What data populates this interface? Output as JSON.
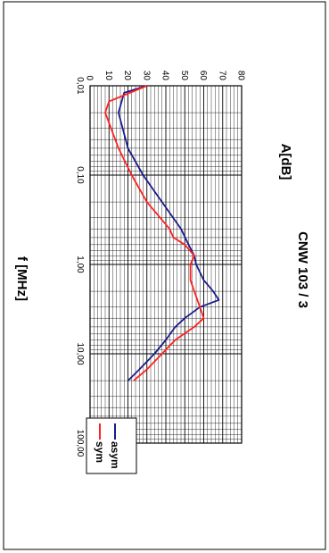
{
  "chart_data": {
    "type": "line",
    "title": "CNW 103 / 3",
    "xlabel": "f [MHz]",
    "ylabel": "A[dB]",
    "x_scale": "log",
    "xlim": [
      0.01,
      100
    ],
    "ylim": [
      0,
      80
    ],
    "x_ticks": [
      "0,01",
      "0,10",
      "1,00",
      "10,00",
      "100,00"
    ],
    "y_ticks": [
      "0",
      "10",
      "20",
      "30",
      "40",
      "50",
      "60",
      "70",
      "80"
    ],
    "grid": true,
    "legend_position": "bottom-right",
    "series": [
      {
        "name": "asym",
        "color": "#1a1a8c",
        "x": [
          0.01,
          0.012,
          0.02,
          0.05,
          0.1,
          0.2,
          0.4,
          0.6,
          0.8,
          1.0,
          1.5,
          2.0,
          2.5,
          3.0,
          4.0,
          5.0,
          7.0,
          10.0,
          15.0,
          20.0
        ],
        "y": [
          30,
          18,
          15,
          20,
          28,
          38,
          48,
          52,
          55,
          56,
          60,
          65,
          68,
          58,
          50,
          45,
          40,
          34,
          26,
          20
        ]
      },
      {
        "name": "sym",
        "color": "#ff2020",
        "x": [
          0.01,
          0.015,
          0.02,
          0.05,
          0.1,
          0.2,
          0.3,
          0.4,
          0.5,
          0.6,
          0.8,
          1.0,
          1.5,
          2.0,
          3.0,
          4.0,
          5.0,
          7.0,
          10.0,
          15.0,
          20.0
        ],
        "y": [
          30,
          10,
          8,
          15,
          22,
          30,
          37,
          42,
          44,
          50,
          55,
          53,
          53,
          55,
          58,
          60,
          55,
          45,
          38,
          30,
          23
        ]
      }
    ]
  }
}
